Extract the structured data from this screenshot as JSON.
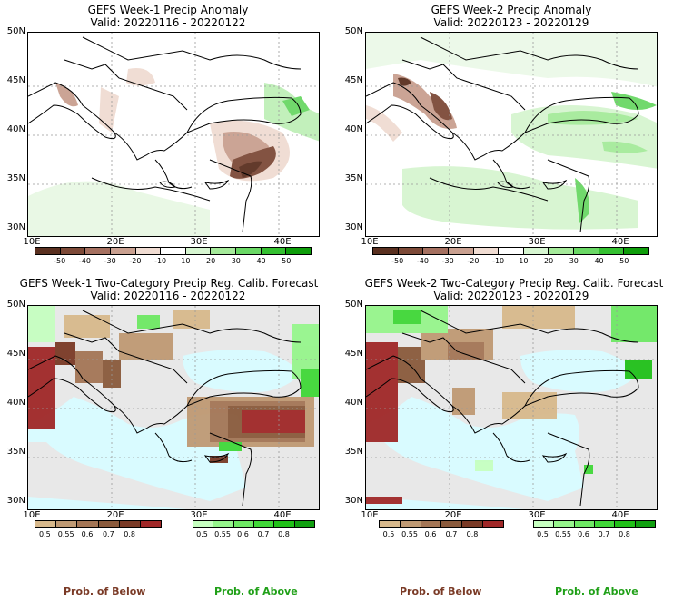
{
  "panels": [
    {
      "title": "GEFS Week-1 Precip Anomaly",
      "valid": "Valid: 20220116 - 20220122"
    },
    {
      "title": "GEFS Week-2 Precip Anomaly",
      "valid": "Valid: 20220123 - 20220129"
    },
    {
      "title": "GEFS Week-1 Two-Category Precip Reg. Calib. Forecast",
      "valid": "Valid: 20220116 - 20220122"
    },
    {
      "title": "GEFS Week-2 Two-Category Precip Reg. Calib. Forecast",
      "valid": "Valid: 20220123 - 20220129"
    }
  ],
  "lat_labels": [
    "50N",
    "45N",
    "40N",
    "35N",
    "30N"
  ],
  "lon_labels": [
    "10E",
    "20E",
    "30E",
    "40E"
  ],
  "anomaly_colorbar": {
    "ticks": [
      "-50",
      "-40",
      "-30",
      "-20",
      "-10",
      "10",
      "20",
      "30",
      "40",
      "50"
    ],
    "colors": [
      "#5a3020",
      "#7d4a38",
      "#a57060",
      "#c9a090",
      "#f0dcd2",
      "#ffffff",
      "#d6f5d0",
      "#a5ea9a",
      "#6ad865",
      "#34c030",
      "#0e9d0a"
    ]
  },
  "prob_below_colorbar": {
    "ticks": [
      "0.5",
      "0.55",
      "0.6",
      "0.7",
      "0.8"
    ],
    "colors": [
      "#d8b98c",
      "#bf9a74",
      "#a47656",
      "#8a5a3c",
      "#7a3a26",
      "#a02828"
    ]
  },
  "prob_above_colorbar": {
    "ticks": [
      "0.5",
      "0.55",
      "0.6",
      "0.7",
      "0.8"
    ],
    "colors": [
      "#c6ffc0",
      "#96f58c",
      "#6ee864",
      "#40d838",
      "#20c018",
      "#10a010"
    ]
  },
  "footer": {
    "below": "Prob. of Below",
    "above": "Prob. of Above"
  },
  "colors": {
    "sea": "#d9fbff",
    "land_gray": "#e8e8e8"
  }
}
